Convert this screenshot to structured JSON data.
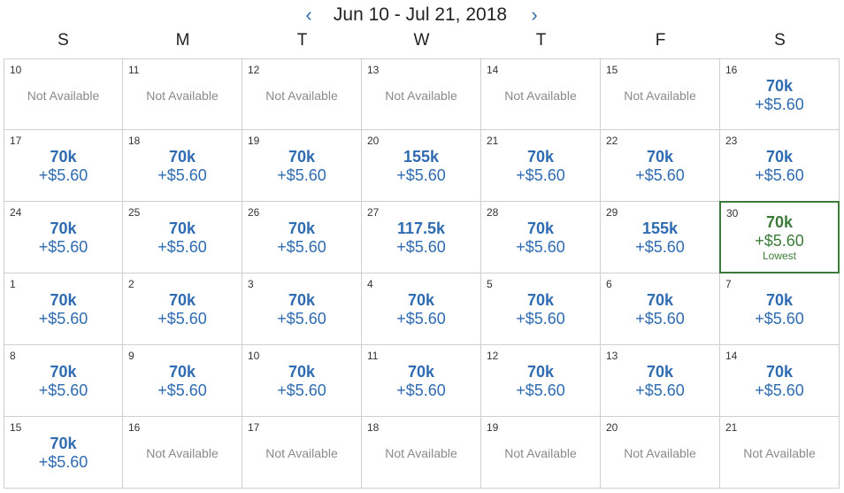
{
  "header": {
    "prev_icon": "chevron-left-icon",
    "next_icon": "chevron-right-icon",
    "prev_glyph": "‹",
    "next_glyph": "›",
    "range": "Jun 10 - Jul 21, 2018"
  },
  "weekdays": [
    "S",
    "M",
    "T",
    "W",
    "T",
    "F",
    "S"
  ],
  "colors": {
    "price": "#2f6bb0",
    "lowest": "#3d7a3a",
    "unavailable": "#8a8a8a"
  },
  "unavailable_label": "Not Available",
  "lowest_label": "Lowest",
  "days": [
    {
      "day": "10",
      "miles": null,
      "fee": null
    },
    {
      "day": "11",
      "miles": null,
      "fee": null
    },
    {
      "day": "12",
      "miles": null,
      "fee": null
    },
    {
      "day": "13",
      "miles": null,
      "fee": null
    },
    {
      "day": "14",
      "miles": null,
      "fee": null
    },
    {
      "day": "15",
      "miles": null,
      "fee": null
    },
    {
      "day": "16",
      "miles": "70k",
      "fee": "+$5.60"
    },
    {
      "day": "17",
      "miles": "70k",
      "fee": "+$5.60"
    },
    {
      "day": "18",
      "miles": "70k",
      "fee": "+$5.60"
    },
    {
      "day": "19",
      "miles": "70k",
      "fee": "+$5.60"
    },
    {
      "day": "20",
      "miles": "155k",
      "fee": "+$5.60"
    },
    {
      "day": "21",
      "miles": "70k",
      "fee": "+$5.60"
    },
    {
      "day": "22",
      "miles": "70k",
      "fee": "+$5.60"
    },
    {
      "day": "23",
      "miles": "70k",
      "fee": "+$5.60"
    },
    {
      "day": "24",
      "miles": "70k",
      "fee": "+$5.60"
    },
    {
      "day": "25",
      "miles": "70k",
      "fee": "+$5.60"
    },
    {
      "day": "26",
      "miles": "70k",
      "fee": "+$5.60"
    },
    {
      "day": "27",
      "miles": "117.5k",
      "fee": "+$5.60"
    },
    {
      "day": "28",
      "miles": "70k",
      "fee": "+$5.60"
    },
    {
      "day": "29",
      "miles": "155k",
      "fee": "+$5.60"
    },
    {
      "day": "30",
      "miles": "70k",
      "fee": "+$5.60",
      "lowest": true
    },
    {
      "day": "1",
      "miles": "70k",
      "fee": "+$5.60"
    },
    {
      "day": "2",
      "miles": "70k",
      "fee": "+$5.60"
    },
    {
      "day": "3",
      "miles": "70k",
      "fee": "+$5.60"
    },
    {
      "day": "4",
      "miles": "70k",
      "fee": "+$5.60"
    },
    {
      "day": "5",
      "miles": "70k",
      "fee": "+$5.60"
    },
    {
      "day": "6",
      "miles": "70k",
      "fee": "+$5.60"
    },
    {
      "day": "7",
      "miles": "70k",
      "fee": "+$5.60"
    },
    {
      "day": "8",
      "miles": "70k",
      "fee": "+$5.60"
    },
    {
      "day": "9",
      "miles": "70k",
      "fee": "+$5.60"
    },
    {
      "day": "10",
      "miles": "70k",
      "fee": "+$5.60"
    },
    {
      "day": "11",
      "miles": "70k",
      "fee": "+$5.60"
    },
    {
      "day": "12",
      "miles": "70k",
      "fee": "+$5.60"
    },
    {
      "day": "13",
      "miles": "70k",
      "fee": "+$5.60"
    },
    {
      "day": "14",
      "miles": "70k",
      "fee": "+$5.60"
    },
    {
      "day": "15",
      "miles": "70k",
      "fee": "+$5.60"
    },
    {
      "day": "16",
      "miles": null,
      "fee": null
    },
    {
      "day": "17",
      "miles": null,
      "fee": null
    },
    {
      "day": "18",
      "miles": null,
      "fee": null
    },
    {
      "day": "19",
      "miles": null,
      "fee": null
    },
    {
      "day": "20",
      "miles": null,
      "fee": null
    },
    {
      "day": "21",
      "miles": null,
      "fee": null
    }
  ]
}
